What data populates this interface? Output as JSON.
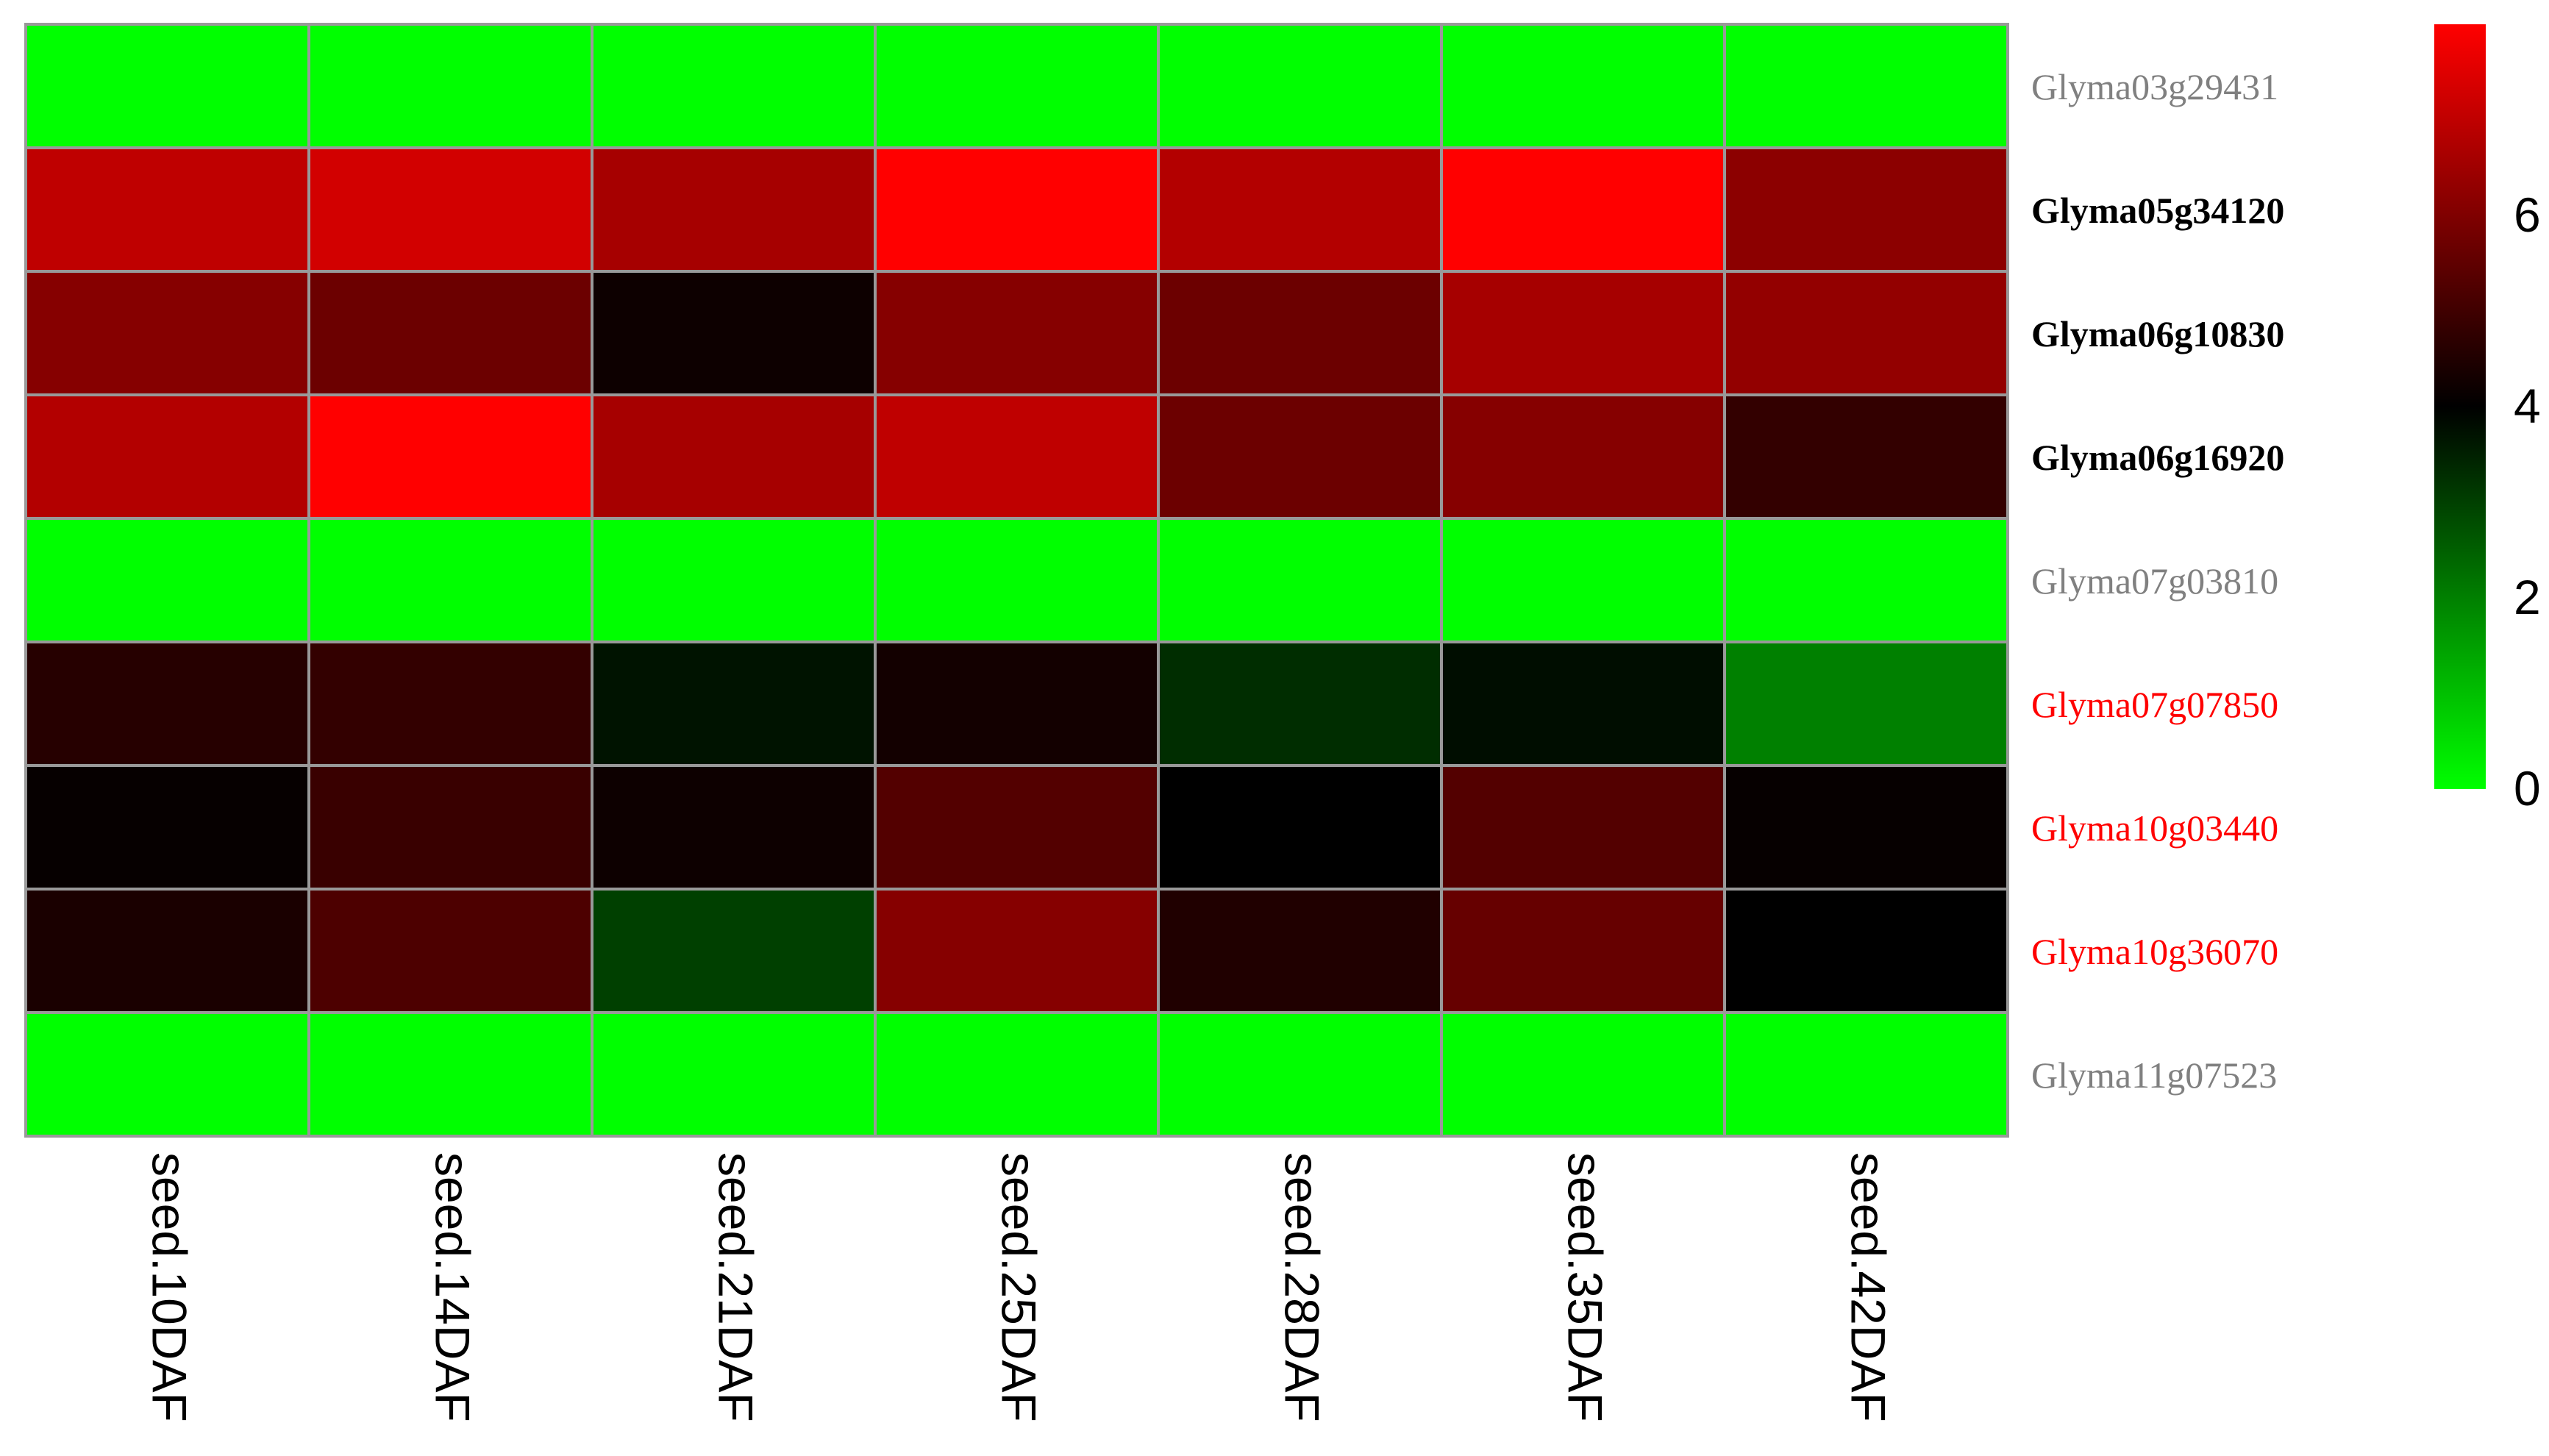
{
  "chart_data": {
    "type": "heatmap",
    "columns": [
      "seed.10DAF",
      "seed.14DAF",
      "seed.21DAF",
      "seed.25DAF",
      "seed.28DAF",
      "seed.35DAF",
      "seed.42DAF"
    ],
    "rows": [
      {
        "label": "Glyma03g29431",
        "label_color": "#808080",
        "label_bold": false
      },
      {
        "label": "Glyma05g34120",
        "label_color": "#000000",
        "label_bold": true
      },
      {
        "label": "Glyma06g10830",
        "label_color": "#000000",
        "label_bold": true
      },
      {
        "label": "Glyma06g16920",
        "label_color": "#000000",
        "label_bold": true
      },
      {
        "label": "Glyma07g03810",
        "label_color": "#808080",
        "label_bold": false
      },
      {
        "label": "Glyma07g07850",
        "label_color": "#ff0000",
        "label_bold": false
      },
      {
        "label": "Glyma10g03440",
        "label_color": "#ff0000",
        "label_bold": false
      },
      {
        "label": "Glyma10g36070",
        "label_color": "#ff0000",
        "label_bold": false
      },
      {
        "label": "Glyma11g07523",
        "label_color": "#808080",
        "label_bold": false
      }
    ],
    "values": [
      [
        0,
        0,
        0,
        0,
        0,
        0,
        0
      ],
      [
        7.0,
        7.3,
        6.6,
        8.0,
        6.8,
        8.0,
        6.2
      ],
      [
        6.1,
        5.7,
        4.2,
        6.1,
        5.7,
        6.6,
        6.3
      ],
      [
        6.8,
        8.0,
        6.6,
        7.0,
        5.7,
        6.1,
        4.8
      ],
      [
        0,
        0,
        0,
        0,
        0,
        0,
        0
      ],
      [
        4.6,
        4.8,
        3.7,
        4.3,
        3.3,
        3.8,
        2.0
      ],
      [
        4.1,
        4.9,
        4.2,
        5.3,
        4.0,
        5.3,
        4.1
      ],
      [
        4.4,
        5.2,
        3.0,
        6.1,
        4.5,
        5.6,
        4.0
      ],
      [
        0,
        0,
        0,
        0,
        0,
        0,
        0
      ]
    ],
    "colorscale": {
      "min": 0,
      "mid": 4,
      "max": 8,
      "low_color": "#00ff00",
      "mid_color": "#000000",
      "high_color": "#ff0000",
      "ticks": [
        0,
        2,
        4,
        6
      ],
      "tick_labels": [
        "0",
        "2",
        "4",
        "6"
      ]
    },
    "grid_color": "#999999",
    "legend_placement": "right"
  }
}
